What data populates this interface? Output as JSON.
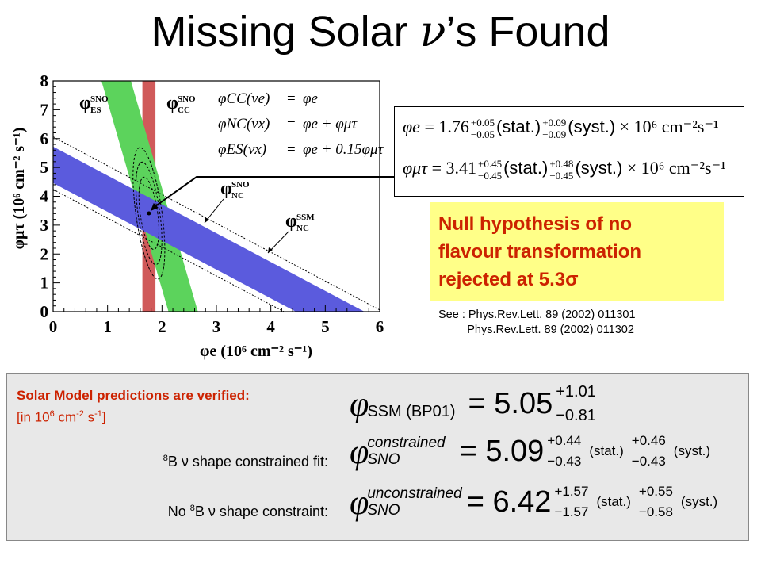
{
  "slide": {
    "title_pre": "Missing Solar ",
    "title_nu": "ν",
    "title_post": "’s Found"
  },
  "chart_data": {
    "type": "band-constraint-plot",
    "xlabel": "φe (10⁶ cm⁻² s⁻¹)",
    "ylabel": "φμτ (10⁶ cm⁻² s⁻¹)",
    "xlim": [
      0,
      6
    ],
    "ylim": [
      0,
      8
    ],
    "x_ticks": [
      "0",
      "1",
      "2",
      "3",
      "4",
      "5",
      "6"
    ],
    "y_ticks": [
      "0",
      "1",
      "2",
      "3",
      "4",
      "5",
      "6",
      "7",
      "8"
    ],
    "grid": false,
    "bands": [
      {
        "name": "SNO CC",
        "label_top": "SNO",
        "label_bottom": "CC",
        "color": "#d05a5a",
        "relation": "φe = φCC",
        "center": 1.76,
        "halfwidth": 0.12
      },
      {
        "name": "SNO ES",
        "label_top": "SNO",
        "label_bottom": "ES",
        "color": "#5cd35c",
        "relation": "φe + 0.154 φμτ = φES",
        "center": 2.39,
        "halfwidth": 0.27
      },
      {
        "name": "SNO NC",
        "label_top": "SNO",
        "label_bottom": "NC",
        "color": "#5b5bdd",
        "relation": "φe + φμτ = φNC",
        "center": 5.09,
        "halfwidth": 0.63
      },
      {
        "name": "SSM NC",
        "label_top": "SSM",
        "label_bottom": "NC",
        "style": "dotted",
        "relation": "φe + φμτ = φSSM",
        "lower": 4.24,
        "upper": 6.06
      }
    ],
    "best_fit": {
      "x": 1.76,
      "y": 3.41
    },
    "contours": "dashed confidence ellipses around best fit",
    "equations": [
      {
        "lhs": "φCC(νe)",
        "rhs": "φe"
      },
      {
        "lhs": "φNC(νx)",
        "rhs": "φe + φμτ"
      },
      {
        "lhs": "φES(νx)",
        "rhs": "φe + 0.15φμτ"
      }
    ]
  },
  "results": {
    "phi_e": {
      "symbol": "φe",
      "value": "1.76",
      "stat_plus": "+0.05",
      "stat_minus": "−0.05",
      "syst_plus": "+0.09",
      "syst_minus": "−0.09",
      "unit": "× 10⁶ cm⁻²s⁻¹"
    },
    "phi_mt": {
      "symbol": "φμτ",
      "value": "3.41",
      "stat_plus": "+0.45",
      "stat_minus": "−0.45",
      "syst_plus": "+0.48",
      "syst_minus": "−0.45",
      "unit": "× 10⁶ cm⁻²s⁻¹"
    },
    "stat_label": "(stat.)",
    "syst_label": "(syst.)"
  },
  "null_hypothesis": {
    "line1": "Null hypothesis of no",
    "line2": "flavour transformation",
    "line3": "rejected at 5.3σ"
  },
  "references": {
    "text": "See : Phys.Rev.Lett. 89 (2002) 011301\n         Phys.Rev.Lett. 89 (2002) 011302"
  },
  "predictions": {
    "title": "Solar Model predictions are verified:",
    "units_pre": "[in 10",
    "units_exp6": "6",
    "units_mid": " cm",
    "units_expm2": "-2",
    "units_mid2": " s",
    "units_expm1": "-1",
    "units_post": "]",
    "ssm": {
      "sub": "SSM (BP01)",
      "value": "5.05",
      "plus": "+1.01",
      "minus": "−0.81"
    },
    "constrained": {
      "label_sup": "8",
      "label_text": "B ν shape constrained fit:",
      "super": "constrained",
      "sub": "SNO",
      "value": "5.09",
      "stat_plus": "+0.44",
      "stat_minus": "−0.43",
      "syst_plus": "+0.46",
      "syst_minus": "−0.43"
    },
    "unconstrained": {
      "label_pre": "No ",
      "label_sup": "8",
      "label_text": "B ν shape constraint:",
      "super": "unconstrained",
      "sub": "SNO",
      "value": "6.42",
      "stat_plus": "+1.57",
      "stat_minus": "−1.57",
      "syst_plus": "+0.55",
      "syst_minus": "−0.58"
    },
    "stat_label": "(stat.)",
    "syst_label": "(syst.)"
  },
  "colors": {
    "cc": "#d05a5a",
    "es": "#5cd35c",
    "nc": "#5b5bdd",
    "highlight": "#ffff88",
    "accent_red": "#cc2200",
    "panel": "#e8e8e8"
  }
}
